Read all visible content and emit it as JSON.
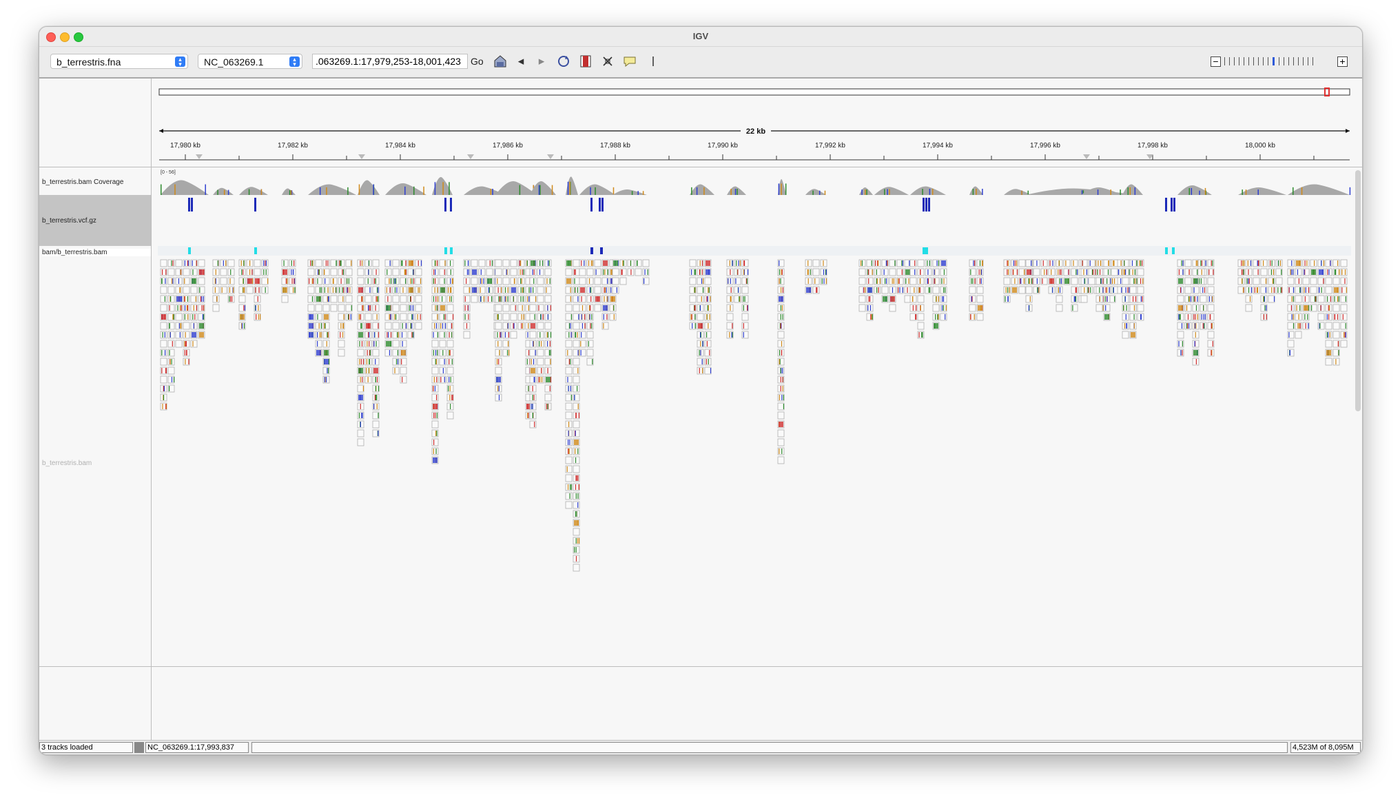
{
  "window": {
    "title": "IGV"
  },
  "toolbar": {
    "genome": "b_terrestris.fna",
    "chromosome": "NC_063269.1",
    "locus": ".063269.1:17,979,253-18,001,423",
    "go_label": "Go",
    "icons": [
      "home-icon",
      "back-icon",
      "forward-icon",
      "refresh-icon",
      "region-icon",
      "resize-icon",
      "popup-icon",
      "ruler-icon"
    ]
  },
  "ruler": {
    "span_label": "22 kb",
    "ticks": [
      "17,980 kb",
      "17,982 kb",
      "17,984 kb",
      "17,986 kb",
      "17,988 kb",
      "17,990 kb",
      "17,992 kb",
      "17,994 kb",
      "17,996 kb",
      "17,998 kb",
      "18,000 kb"
    ]
  },
  "tracks": {
    "coverage_name": "b_terrestris.bam Coverage",
    "coverage_range": "[0 - 56]",
    "vcf_name": "b_terrestris.vcf.gz",
    "junction_name": "bam/b_terrestris.bam",
    "alignment_name": "b_terrestris.bam"
  },
  "status": {
    "tracks_loaded": "3 tracks loaded",
    "position": "NC_063269.1:17,993,837",
    "memory": "4,523M of 8,095M"
  },
  "colors": {
    "mismatch_a": "#2e8b2e",
    "mismatch_c": "#2f3fd0",
    "mismatch_g": "#d08a1a",
    "mismatch_t": "#d03030",
    "variant": "#1c2ab8",
    "junction": "#22dde6",
    "coverage": "#a8a8a8"
  }
}
